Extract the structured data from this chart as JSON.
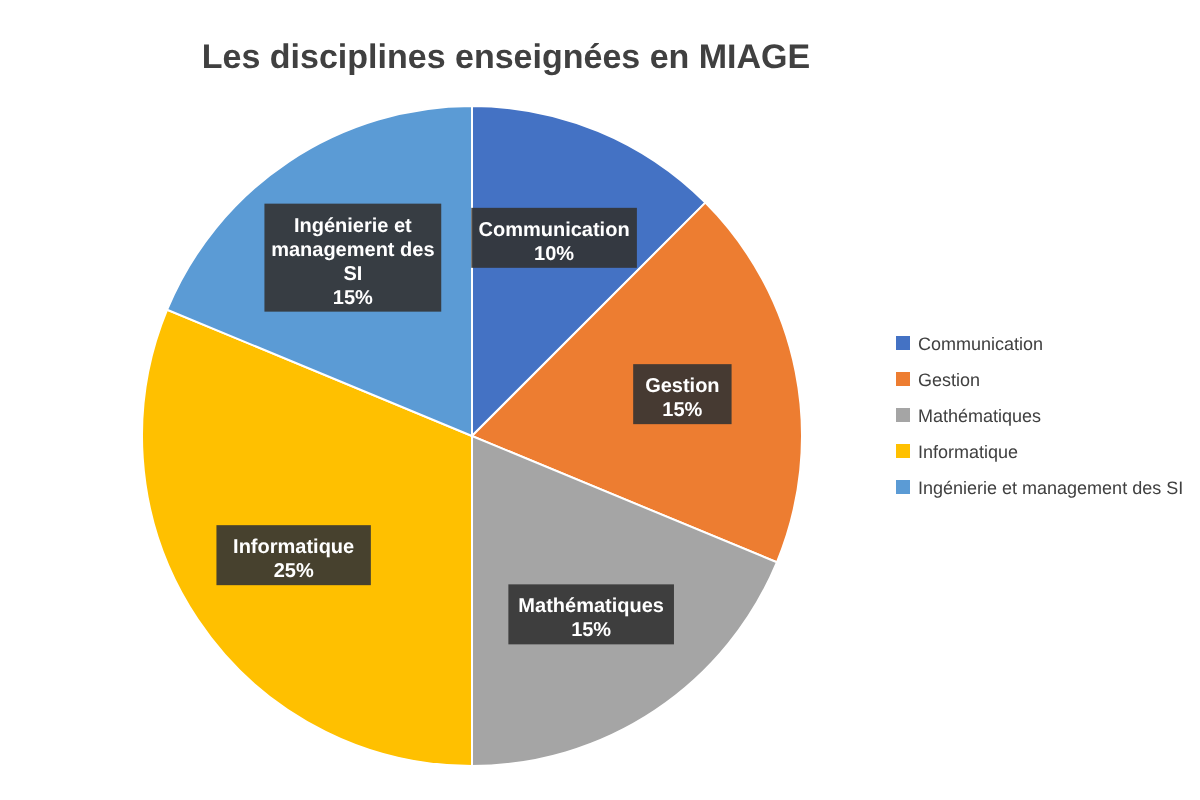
{
  "chart_data": {
    "type": "pie",
    "title": "Les disciplines enseignées en MIAGE",
    "categories": [
      "Communication",
      "Gestion",
      "Mathématiques",
      "Informatique",
      "Ingénierie et management des SI"
    ],
    "values": [
      10,
      15,
      15,
      25,
      15
    ],
    "value_labels": [
      "10%",
      "15%",
      "15%",
      "25%",
      "15%"
    ],
    "colors": [
      "#4472c4",
      "#ed7d31",
      "#a5a5a5",
      "#ffc000",
      "#5b9bd5"
    ],
    "legend": "right"
  }
}
